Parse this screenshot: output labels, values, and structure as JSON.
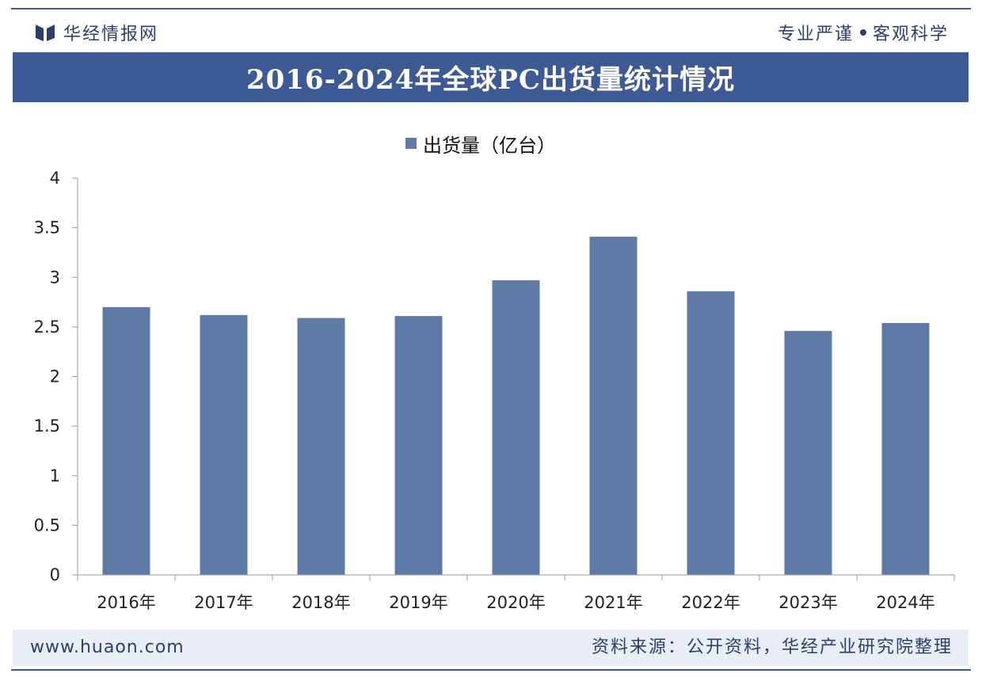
{
  "header": {
    "brand": "华经情报网",
    "slogan_left": "专业严谨",
    "slogan_right": "客观科学"
  },
  "colors": {
    "accent": "#3e5a94",
    "bar": "#5f7aa6",
    "footer_bg": "#e9eef6"
  },
  "icons": {
    "brand_logo": "huajing-logo-icon"
  },
  "chart_data": {
    "type": "bar",
    "title": "2016-2024年全球PC出货量统计情况",
    "categories": [
      "2016年",
      "2017年",
      "2018年",
      "2019年",
      "2020年",
      "2021年",
      "2022年",
      "2023年",
      "2024年"
    ],
    "series": [
      {
        "name": "出货量（亿台）",
        "values": [
          2.7,
          2.62,
          2.59,
          2.61,
          2.97,
          3.41,
          2.86,
          2.46,
          2.54
        ]
      }
    ],
    "ylim": [
      0,
      4
    ],
    "yticks": [
      "0",
      "0.5",
      "1",
      "1.5",
      "2",
      "2.5",
      "3",
      "3.5",
      "4"
    ],
    "grid": false,
    "legend_position": "top-center"
  },
  "footer": {
    "url": "www.huaon.com",
    "source": "资料来源：公开资料，华经产业研究院整理"
  }
}
